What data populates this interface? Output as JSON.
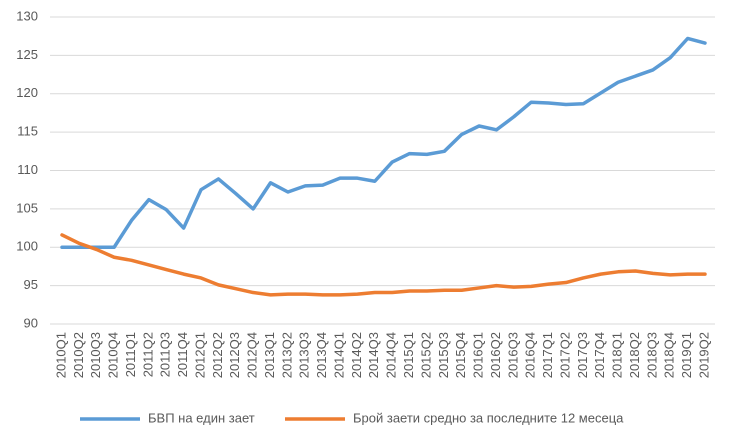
{
  "chart_data": {
    "type": "line",
    "categories": [
      "2010Q1",
      "2010Q2",
      "2010Q3",
      "2010Q4",
      "2011Q1",
      "2011Q2",
      "2011Q3",
      "2011Q4",
      "2012Q1",
      "2012Q2",
      "2012Q3",
      "2012Q4",
      "2013Q1",
      "2013Q2",
      "2013Q3",
      "2013Q4",
      "2014Q1",
      "2014Q2",
      "2014Q3",
      "2014Q4",
      "2015Q1",
      "2015Q2",
      "2015Q3",
      "2015Q4",
      "2016Q1",
      "2016Q2",
      "2016Q3",
      "2016Q4",
      "2017Q1",
      "2017Q2",
      "2017Q3",
      "2017Q4",
      "2018Q1",
      "2018Q2",
      "2018Q3",
      "2018Q4",
      "2019Q1",
      "2019Q2"
    ],
    "series": [
      {
        "name": "БВП на един зает",
        "color": "#5b9bd5",
        "values": [
          100,
          100,
          100,
          100,
          103.5,
          106.2,
          104.9,
          102.5,
          107.5,
          108.9,
          107,
          105,
          108.4,
          107.2,
          108,
          108.1,
          109,
          109,
          108.6,
          111.1,
          112.2,
          112.1,
          112.5,
          114.7,
          115.8,
          115.3,
          117,
          118.9,
          118.8,
          118.6,
          118.7,
          120.1,
          121.5,
          122.3,
          123.1,
          124.7,
          127.2,
          126.6
        ]
      },
      {
        "name": "Брой заети средно за последните 12 месеца",
        "color": "#ed7d31",
        "values": [
          101.6,
          100.5,
          99.7,
          98.7,
          98.3,
          97.7,
          97.1,
          96.5,
          96.0,
          95.1,
          94.6,
          94.1,
          93.8,
          93.9,
          93.9,
          93.8,
          93.8,
          93.9,
          94.1,
          94.1,
          94.3,
          94.3,
          94.4,
          94.4,
          94.7,
          95.0,
          94.8,
          94.9,
          95.2,
          95.4,
          96.0,
          96.5,
          96.8,
          96.9,
          96.6,
          96.4,
          96.5,
          96.5
        ]
      }
    ],
    "ylim": [
      90,
      130
    ],
    "yticks": [
      90,
      95,
      100,
      105,
      110,
      115,
      120,
      125,
      130
    ],
    "grid": true,
    "legend": "bottom"
  }
}
